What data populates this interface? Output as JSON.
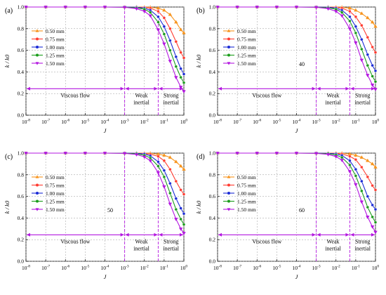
{
  "chart_data": [
    {
      "panel_label": "(a)",
      "annotation": "",
      "type": "line",
      "xscale": "log",
      "xlim": [
        1e-08,
        1
      ],
      "ylim": [
        0,
        1.0
      ],
      "xlabel": "J",
      "ylabel": "k / k0",
      "xticks_exp": [
        "-8",
        "-7",
        "-6",
        "-5",
        "-4",
        "-3",
        "-2",
        "-1",
        "0"
      ],
      "yticks": [
        "0.0",
        "0.2",
        "0.4",
        "0.6",
        "0.8",
        "1.0"
      ],
      "grid": true,
      "legend_position": "left",
      "regions": [
        {
          "label_lines": [
            "Viscous flow"
          ],
          "x_start": 1e-08,
          "x_end": 0.001
        },
        {
          "label_lines": [
            "Weak",
            "inertial"
          ],
          "x_start": 0.001,
          "x_end": 0.05
        },
        {
          "label_lines": [
            "Strong",
            "inertial"
          ],
          "x_start": 0.05,
          "x_end": 1
        }
      ],
      "series": [
        {
          "name": "0.50 mm",
          "color": "#f7941d",
          "x": [
            1e-08,
            1e-07,
            1e-06,
            1e-05,
            0.0001,
            0.001,
            0.004,
            0.01,
            0.02,
            0.05,
            0.1,
            0.2,
            0.4,
            0.7,
            1.0
          ],
          "y": [
            1.0,
            1.0,
            1.0,
            1.0,
            1.0,
            1.0,
            1.0,
            0.999,
            0.997,
            0.99,
            0.97,
            0.93,
            0.86,
            0.79,
            0.76
          ]
        },
        {
          "name": "0.75 mm",
          "color": "#ff3b30",
          "x": [
            1e-08,
            1e-07,
            1e-06,
            1e-05,
            0.0001,
            0.001,
            0.004,
            0.01,
            0.02,
            0.05,
            0.1,
            0.2,
            0.4,
            0.7,
            1.0
          ],
          "y": [
            1.0,
            1.0,
            1.0,
            1.0,
            1.0,
            1.0,
            0.999,
            0.996,
            0.99,
            0.96,
            0.9,
            0.8,
            0.68,
            0.58,
            0.53
          ]
        },
        {
          "name": "1.00 mm",
          "color": "#1a2ad6",
          "x": [
            1e-08,
            1e-07,
            1e-06,
            1e-05,
            0.0001,
            0.001,
            0.004,
            0.01,
            0.02,
            0.05,
            0.1,
            0.2,
            0.4,
            0.7,
            1.0
          ],
          "y": [
            1.0,
            1.0,
            1.0,
            1.0,
            1.0,
            1.0,
            0.998,
            0.99,
            0.97,
            0.91,
            0.82,
            0.69,
            0.54,
            0.43,
            0.38
          ]
        },
        {
          "name": "1.25 mm",
          "color": "#1a9c1a",
          "x": [
            1e-08,
            1e-07,
            1e-06,
            1e-05,
            0.0001,
            0.001,
            0.004,
            0.01,
            0.02,
            0.05,
            0.1,
            0.2,
            0.4,
            0.7,
            1.0
          ],
          "y": [
            1.0,
            1.0,
            1.0,
            1.0,
            1.0,
            0.999,
            0.993,
            0.98,
            0.95,
            0.86,
            0.75,
            0.6,
            0.45,
            0.35,
            0.3
          ]
        },
        {
          "name": "1.50 mm",
          "color": "#b316e0",
          "x": [
            1e-08,
            1e-07,
            1e-06,
            1e-05,
            0.0001,
            0.001,
            0.004,
            0.01,
            0.02,
            0.05,
            0.1,
            0.2,
            0.4,
            0.7,
            1.0
          ],
          "y": [
            1.0,
            1.0,
            1.0,
            1.0,
            1.0,
            0.998,
            0.985,
            0.96,
            0.92,
            0.79,
            0.66,
            0.5,
            0.35,
            0.26,
            0.22
          ]
        }
      ]
    },
    {
      "panel_label": "(b)",
      "annotation": "40",
      "type": "line",
      "xscale": "log",
      "xlim": [
        1e-08,
        1
      ],
      "ylim": [
        0,
        1.0
      ],
      "xlabel": "J",
      "ylabel": "k / k0",
      "xticks_exp": [
        "-8",
        "-7",
        "-6",
        "-5",
        "-4",
        "-3",
        "-2",
        "-1",
        "0"
      ],
      "yticks": [
        "0.0",
        "0.2",
        "0.4",
        "0.6",
        "0.8",
        "1.0"
      ],
      "grid": true,
      "legend_position": "left",
      "regions": [
        {
          "label_lines": [
            "Viscous flow"
          ],
          "x_start": 1e-08,
          "x_end": 0.001
        },
        {
          "label_lines": [
            "Weak",
            "inertial"
          ],
          "x_start": 0.001,
          "x_end": 0.05
        },
        {
          "label_lines": [
            "Strong",
            "inertial"
          ],
          "x_start": 0.05,
          "x_end": 1
        }
      ],
      "series": [
        {
          "name": "0.50 mm",
          "color": "#f7941d",
          "x": [
            1e-08,
            1e-07,
            1e-06,
            1e-05,
            0.0001,
            0.001,
            0.004,
            0.01,
            0.02,
            0.05,
            0.1,
            0.2,
            0.4,
            0.7,
            1.0
          ],
          "y": [
            1.0,
            1.0,
            1.0,
            1.0,
            1.0,
            1.0,
            1.0,
            0.999,
            0.997,
            0.99,
            0.97,
            0.94,
            0.9,
            0.86,
            0.82
          ]
        },
        {
          "name": "0.75 mm",
          "color": "#ff3b30",
          "x": [
            1e-08,
            1e-07,
            1e-06,
            1e-05,
            0.0001,
            0.001,
            0.004,
            0.01,
            0.02,
            0.05,
            0.1,
            0.2,
            0.4,
            0.7,
            1.0
          ],
          "y": [
            1.0,
            1.0,
            1.0,
            1.0,
            1.0,
            1.0,
            0.999,
            0.997,
            0.99,
            0.96,
            0.91,
            0.83,
            0.72,
            0.63,
            0.58
          ]
        },
        {
          "name": "1.00 mm",
          "color": "#1a2ad6",
          "x": [
            1e-08,
            1e-07,
            1e-06,
            1e-05,
            0.0001,
            0.001,
            0.004,
            0.01,
            0.02,
            0.05,
            0.1,
            0.2,
            0.4,
            0.7,
            1.0
          ],
          "y": [
            1.0,
            1.0,
            1.0,
            1.0,
            1.0,
            1.0,
            0.998,
            0.99,
            0.97,
            0.91,
            0.82,
            0.7,
            0.56,
            0.46,
            0.41
          ]
        },
        {
          "name": "1.25 mm",
          "color": "#1a9c1a",
          "x": [
            1e-08,
            1e-07,
            1e-06,
            1e-05,
            0.0001,
            0.001,
            0.004,
            0.01,
            0.02,
            0.05,
            0.1,
            0.2,
            0.4,
            0.7,
            1.0
          ],
          "y": [
            1.0,
            1.0,
            1.0,
            1.0,
            1.0,
            0.999,
            0.993,
            0.98,
            0.95,
            0.87,
            0.76,
            0.61,
            0.46,
            0.36,
            0.31
          ]
        },
        {
          "name": "1.50 mm",
          "color": "#b316e0",
          "x": [
            1e-08,
            1e-07,
            1e-06,
            1e-05,
            0.0001,
            0.001,
            0.004,
            0.01,
            0.02,
            0.05,
            0.1,
            0.2,
            0.4,
            0.7,
            1.0
          ],
          "y": [
            1.0,
            1.0,
            1.0,
            1.0,
            1.0,
            0.998,
            0.985,
            0.96,
            0.92,
            0.8,
            0.67,
            0.51,
            0.37,
            0.28,
            0.24
          ]
        }
      ]
    },
    {
      "panel_label": "(c)",
      "annotation": "50",
      "type": "line",
      "xscale": "log",
      "xlim": [
        1e-08,
        1
      ],
      "ylim": [
        0,
        1.0
      ],
      "xlabel": "J",
      "ylabel": "k / k0",
      "xticks_exp": [
        "-8",
        "-7",
        "-6",
        "-5",
        "-4",
        "-3",
        "-2",
        "-1",
        "0"
      ],
      "yticks": [
        "0.0",
        "0.2",
        "0.4",
        "0.6",
        "0.8",
        "1.0"
      ],
      "grid": true,
      "legend_position": "left",
      "regions": [
        {
          "label_lines": [
            "Viscous flow"
          ],
          "x_start": 1e-08,
          "x_end": 0.001
        },
        {
          "label_lines": [
            "Weak",
            "inertial"
          ],
          "x_start": 0.001,
          "x_end": 0.05
        },
        {
          "label_lines": [
            "Strong",
            "inertial"
          ],
          "x_start": 0.05,
          "x_end": 1
        }
      ],
      "series": [
        {
          "name": "0.50 mm",
          "color": "#f7941d",
          "x": [
            1e-08,
            1e-07,
            1e-06,
            1e-05,
            0.0001,
            0.001,
            0.004,
            0.01,
            0.02,
            0.05,
            0.1,
            0.2,
            0.4,
            0.7,
            1.0
          ],
          "y": [
            1.0,
            1.0,
            1.0,
            1.0,
            1.0,
            1.0,
            1.0,
            0.999,
            0.998,
            0.99,
            0.98,
            0.96,
            0.92,
            0.88,
            0.85
          ]
        },
        {
          "name": "0.75 mm",
          "color": "#ff3b30",
          "x": [
            1e-08,
            1e-07,
            1e-06,
            1e-05,
            0.0001,
            0.001,
            0.004,
            0.01,
            0.02,
            0.05,
            0.1,
            0.2,
            0.4,
            0.7,
            1.0
          ],
          "y": [
            1.0,
            1.0,
            1.0,
            1.0,
            1.0,
            1.0,
            0.999,
            0.997,
            0.99,
            0.97,
            0.93,
            0.85,
            0.74,
            0.66,
            0.62
          ]
        },
        {
          "name": "1.00 mm",
          "color": "#1a2ad6",
          "x": [
            1e-08,
            1e-07,
            1e-06,
            1e-05,
            0.0001,
            0.001,
            0.004,
            0.01,
            0.02,
            0.05,
            0.1,
            0.2,
            0.4,
            0.7,
            1.0
          ],
          "y": [
            1.0,
            1.0,
            1.0,
            1.0,
            1.0,
            1.0,
            0.998,
            0.992,
            0.975,
            0.92,
            0.84,
            0.72,
            0.58,
            0.49,
            0.44
          ]
        },
        {
          "name": "1.25 mm",
          "color": "#1a9c1a",
          "x": [
            1e-08,
            1e-07,
            1e-06,
            1e-05,
            0.0001,
            0.001,
            0.004,
            0.01,
            0.02,
            0.05,
            0.1,
            0.2,
            0.4,
            0.7,
            1.0
          ],
          "y": [
            1.0,
            1.0,
            1.0,
            1.0,
            1.0,
            0.999,
            0.994,
            0.98,
            0.955,
            0.88,
            0.78,
            0.63,
            0.48,
            0.39,
            0.34
          ]
        },
        {
          "name": "1.50 mm",
          "color": "#b316e0",
          "x": [
            1e-08,
            1e-07,
            1e-06,
            1e-05,
            0.0001,
            0.001,
            0.004,
            0.01,
            0.02,
            0.05,
            0.1,
            0.2,
            0.4,
            0.7,
            1.0
          ],
          "y": [
            1.0,
            1.0,
            1.0,
            1.0,
            1.0,
            0.998,
            0.987,
            0.965,
            0.93,
            0.82,
            0.69,
            0.53,
            0.39,
            0.3,
            0.26
          ]
        }
      ]
    },
    {
      "panel_label": "(d)",
      "annotation": "60",
      "type": "line",
      "xscale": "log",
      "xlim": [
        1e-08,
        1
      ],
      "ylim": [
        0,
        1.0
      ],
      "xlabel": "J",
      "ylabel": "k / k0",
      "xticks_exp": [
        "-8",
        "-7",
        "-6",
        "-5",
        "-4",
        "-3",
        "-2",
        "-1",
        "0"
      ],
      "yticks": [
        "0.0",
        "0.2",
        "0.4",
        "0.6",
        "0.8",
        "1.0"
      ],
      "grid": true,
      "legend_position": "left",
      "regions": [
        {
          "label_lines": [
            "Viscous flow"
          ],
          "x_start": 1e-08,
          "x_end": 0.001
        },
        {
          "label_lines": [
            "Weak",
            "inertial"
          ],
          "x_start": 0.001,
          "x_end": 0.05
        },
        {
          "label_lines": [
            "Strong",
            "inertial"
          ],
          "x_start": 0.05,
          "x_end": 1
        }
      ],
      "series": [
        {
          "name": "0.50 mm",
          "color": "#f7941d",
          "x": [
            1e-08,
            1e-07,
            1e-06,
            1e-05,
            0.0001,
            0.001,
            0.004,
            0.01,
            0.02,
            0.05,
            0.1,
            0.2,
            0.4,
            0.7,
            1.0
          ],
          "y": [
            1.0,
            1.0,
            1.0,
            1.0,
            1.0,
            1.0,
            1.0,
            0.999,
            0.998,
            0.992,
            0.98,
            0.96,
            0.93,
            0.9,
            0.87
          ]
        },
        {
          "name": "0.75 mm",
          "color": "#ff3b30",
          "x": [
            1e-08,
            1e-07,
            1e-06,
            1e-05,
            0.0001,
            0.001,
            0.004,
            0.01,
            0.02,
            0.05,
            0.1,
            0.2,
            0.4,
            0.7,
            1.0
          ],
          "y": [
            1.0,
            1.0,
            1.0,
            1.0,
            1.0,
            1.0,
            0.999,
            0.998,
            0.992,
            0.97,
            0.94,
            0.87,
            0.78,
            0.7,
            0.66
          ]
        },
        {
          "name": "1.00 mm",
          "color": "#1a2ad6",
          "x": [
            1e-08,
            1e-07,
            1e-06,
            1e-05,
            0.0001,
            0.001,
            0.004,
            0.01,
            0.02,
            0.05,
            0.1,
            0.2,
            0.4,
            0.7,
            1.0
          ],
          "y": [
            1.0,
            1.0,
            1.0,
            1.0,
            1.0,
            1.0,
            0.998,
            0.993,
            0.978,
            0.93,
            0.85,
            0.74,
            0.6,
            0.52,
            0.48
          ]
        },
        {
          "name": "1.25 mm",
          "color": "#1a9c1a",
          "x": [
            1e-08,
            1e-07,
            1e-06,
            1e-05,
            0.0001,
            0.001,
            0.004,
            0.01,
            0.02,
            0.05,
            0.1,
            0.2,
            0.4,
            0.7,
            1.0
          ],
          "y": [
            1.0,
            1.0,
            1.0,
            1.0,
            1.0,
            0.999,
            0.995,
            0.982,
            0.96,
            0.89,
            0.79,
            0.65,
            0.5,
            0.41,
            0.36
          ]
        },
        {
          "name": "1.50 mm",
          "color": "#b316e0",
          "x": [
            1e-08,
            1e-07,
            1e-06,
            1e-05,
            0.0001,
            0.001,
            0.004,
            0.01,
            0.02,
            0.05,
            0.1,
            0.2,
            0.4,
            0.7,
            1.0
          ],
          "y": [
            1.0,
            1.0,
            1.0,
            1.0,
            1.0,
            0.998,
            0.988,
            0.968,
            0.935,
            0.83,
            0.71,
            0.55,
            0.41,
            0.32,
            0.27
          ]
        }
      ]
    }
  ]
}
